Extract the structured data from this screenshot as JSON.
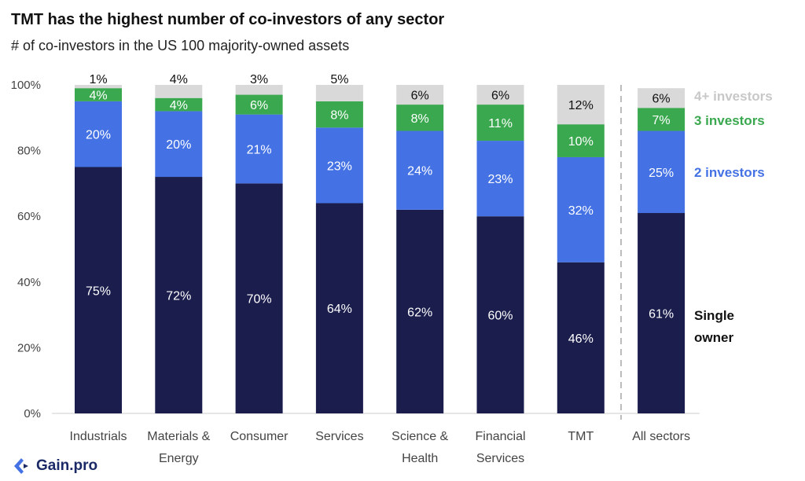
{
  "title": "TMT has the highest number of co-investors of any sector",
  "subtitle": "# of co-investors in the US 100 majority-owned assets",
  "brand": {
    "name": "Gain.pro",
    "color": "#1b2a66"
  },
  "colors": {
    "single_owner": "#1b1d4d",
    "two_investors": "#4472e4",
    "three_investors": "#3aa84e",
    "four_plus_investors": "#d9d9d9",
    "separator": "#bbbbbb"
  },
  "chart_data": {
    "type": "bar",
    "stacked": true,
    "categories": [
      "Industrials",
      "Materials &\nEnergy",
      "Consumer",
      "Services",
      "Science &\nHealth",
      "Financial\nServices",
      "TMT",
      "All sectors"
    ],
    "series": [
      {
        "name": "Single\nowner",
        "key": "single_owner",
        "values": [
          75,
          72,
          70,
          64,
          62,
          60,
          46,
          61
        ]
      },
      {
        "name": "2 investors",
        "key": "two_investors",
        "values": [
          20,
          20,
          21,
          23,
          24,
          23,
          32,
          25
        ]
      },
      {
        "name": "3 investors",
        "key": "three_investors",
        "values": [
          4,
          4,
          6,
          8,
          8,
          11,
          10,
          7
        ]
      },
      {
        "name": "4+ investors",
        "key": "four_plus_investors",
        "values": [
          1,
          4,
          3,
          5,
          6,
          6,
          12,
          6
        ]
      }
    ],
    "ylim": [
      0,
      100
    ],
    "yticks": [
      "0%",
      "20%",
      "40%",
      "60%",
      "80%",
      "100%"
    ],
    "value_suffix": "%",
    "legend_placement": "right",
    "separator_before_last": true
  }
}
